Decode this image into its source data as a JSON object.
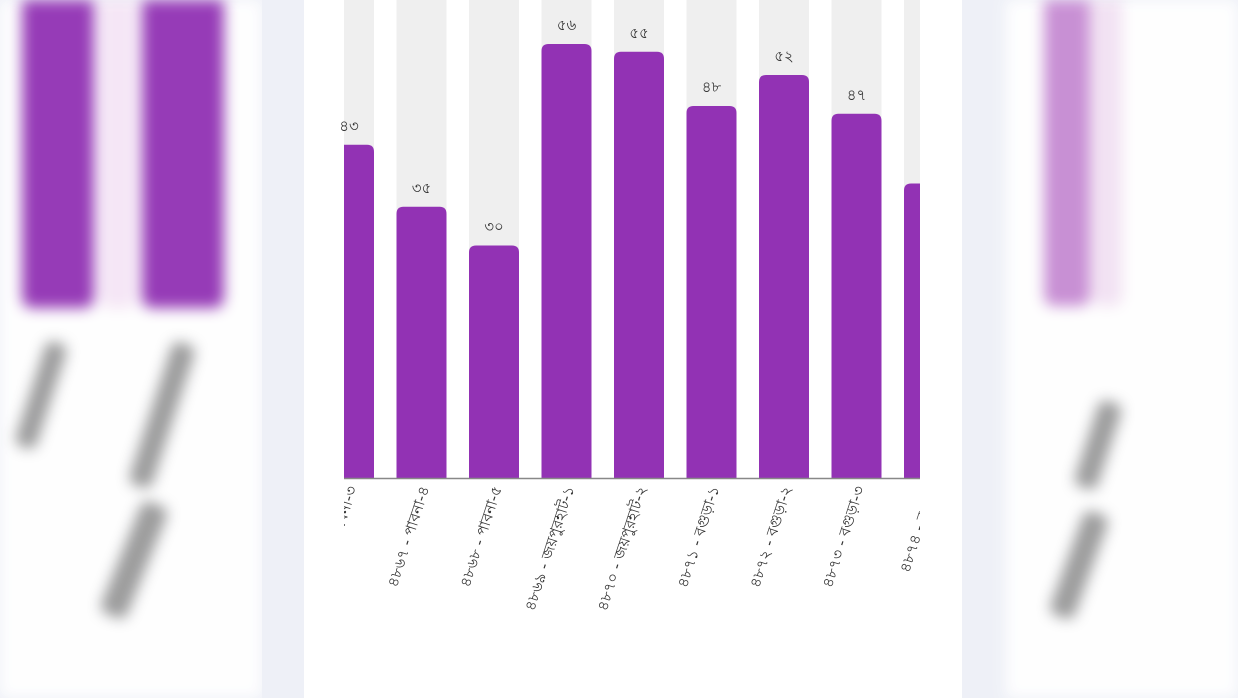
{
  "chart_data": {
    "type": "bar",
    "title": "",
    "xlabel": "",
    "ylabel": "",
    "ylim": [
      0,
      62
    ],
    "grid": false,
    "categories": [
      "...বনা-৩",
      "৪৮৬৭ - পাবনা-৪",
      "৪৮৬৮ - পাবনা-৫",
      "৪৮৬৯ - জয়পুরহাট-১",
      "৪৮৭০ - জয়পুরহাট-২",
      "৪৮৭১ - বগুড়া-১",
      "৪৮৭২ - বগুড়া-২",
      "৪৮৭৩ - বগুড়া-৩",
      "৪৮৭৪ - বগু..."
    ],
    "values": [
      43,
      35,
      30,
      56,
      55,
      48,
      52,
      47,
      38
    ],
    "value_labels": [
      "৪৩",
      "৩৫",
      "৩০",
      "৫৬",
      "৫৫",
      "৪৮",
      "৫২",
      "৪৭",
      ""
    ],
    "colors": {
      "bar": "#9232b4",
      "track": "#efefef",
      "axis": "#888888"
    }
  }
}
